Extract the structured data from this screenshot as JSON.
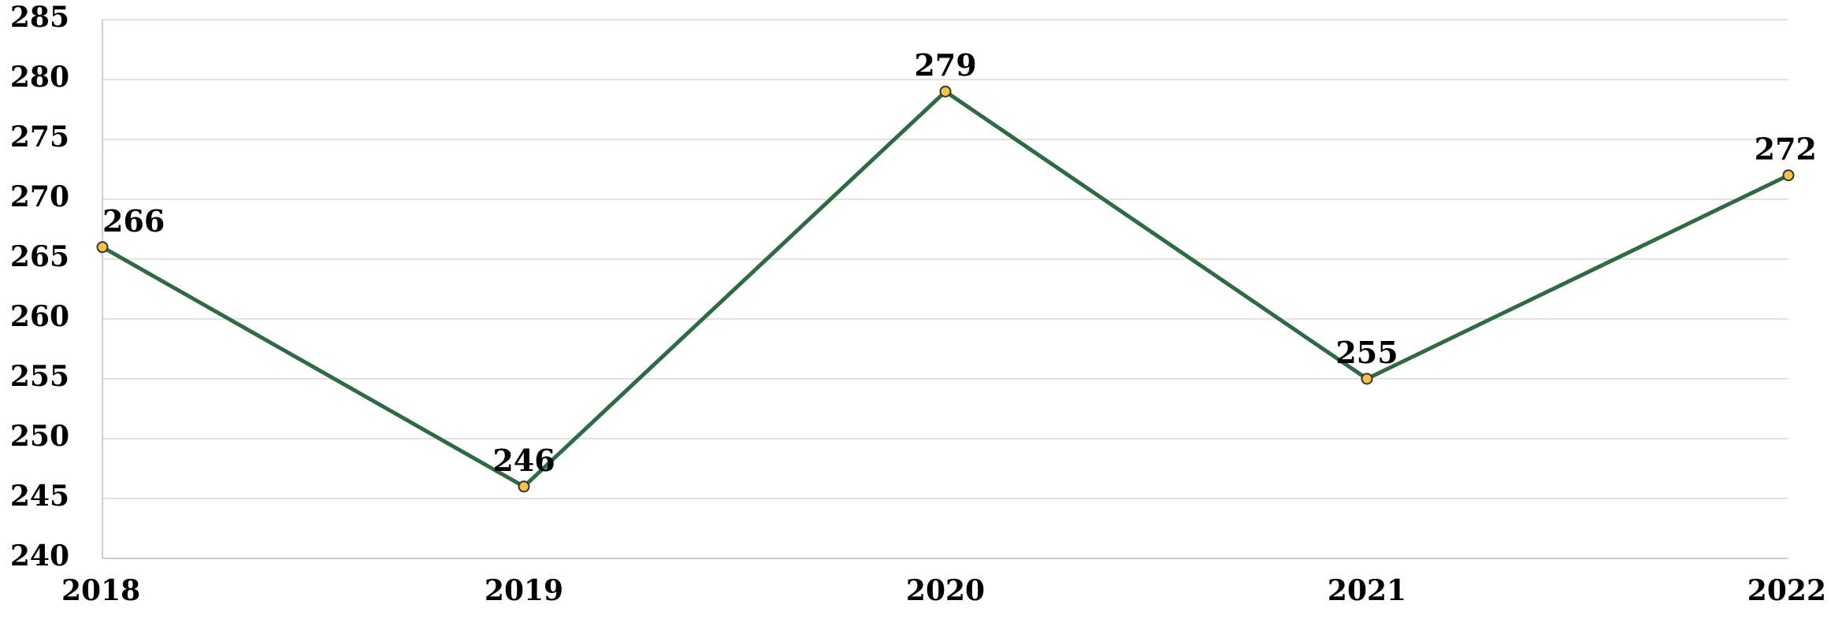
{
  "chart_data": {
    "type": "line",
    "title": "",
    "xlabel": "",
    "ylabel": "",
    "categories": [
      "2018",
      "2019",
      "2020",
      "2021",
      "2022"
    ],
    "series": [
      {
        "values": [
          266,
          246,
          279,
          255,
          272
        ]
      }
    ],
    "ylim": [
      240,
      285
    ],
    "yticks": [
      "240",
      "245",
      "250",
      "255",
      "260",
      "265",
      "270",
      "275",
      "280",
      "285"
    ],
    "data_labels": [
      "266",
      "246",
      "279",
      "255",
      "272"
    ],
    "grid": true,
    "legend": "none",
    "colors": {
      "line": "#2E6B45",
      "marker_fill": "#F5C242",
      "marker_stroke": "#333333",
      "grid": "#D9D9D9",
      "axis": "#BFBFBF"
    }
  }
}
